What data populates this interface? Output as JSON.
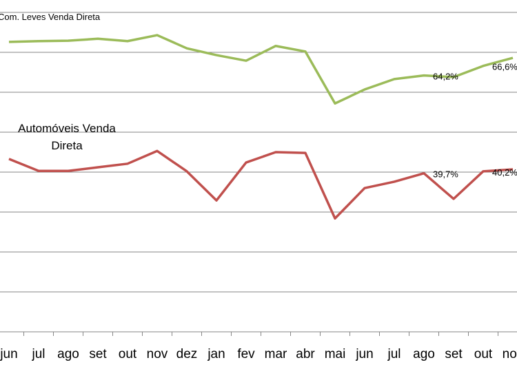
{
  "chart_data": {
    "type": "line",
    "categories": [
      "jun",
      "jul",
      "ago",
      "set",
      "out",
      "nov",
      "dez",
      "jan",
      "fev",
      "mar",
      "abr",
      "mai",
      "jun",
      "jul",
      "ago",
      "set",
      "out",
      "nov"
    ],
    "series": [
      {
        "name": "Com. Leves Venda Direta",
        "color": "#9bbb59",
        "values": [
          72.6,
          72.8,
          72.9,
          73.4,
          72.8,
          74.3,
          71.0,
          69.3,
          67.9,
          71.6,
          70.2,
          57.2,
          60.7,
          63.3,
          64.2,
          63.8,
          66.6,
          68.6
        ],
        "value_labels": [
          null,
          null,
          null,
          null,
          null,
          null,
          null,
          null,
          null,
          null,
          null,
          null,
          null,
          null,
          "64,2%",
          null,
          "66,6%",
          null
        ]
      },
      {
        "name": "Automóveis Venda Direta",
        "color": "#c0504d",
        "values": [
          43.3,
          40.3,
          40.3,
          41.2,
          42.1,
          45.3,
          40.2,
          32.9,
          42.4,
          45.0,
          44.8,
          28.4,
          36.0,
          37.6,
          39.7,
          33.3,
          40.2,
          40.7
        ],
        "value_labels": [
          null,
          null,
          null,
          null,
          null,
          null,
          null,
          null,
          null,
          null,
          null,
          null,
          null,
          null,
          "39,7%",
          null,
          "40,2%",
          null
        ]
      }
    ],
    "ylim": [
      0,
      80
    ],
    "yticks": [
      0,
      10,
      20,
      30,
      40,
      50,
      60,
      70,
      80
    ],
    "grid": true
  }
}
